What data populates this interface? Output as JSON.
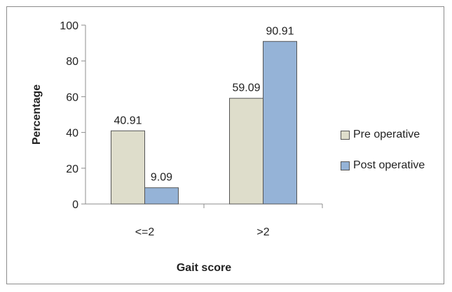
{
  "chart_data": {
    "type": "bar",
    "categories": [
      "<=2",
      ">2"
    ],
    "series": [
      {
        "name": "Pre operative",
        "values": [
          40.91,
          59.09
        ],
        "color": "#deddcb"
      },
      {
        "name": "Post operative",
        "values": [
          9.09,
          90.91
        ],
        "color": "#95b3d7"
      }
    ],
    "data_labels": [
      [
        "40.91",
        "59.09"
      ],
      [
        "9.09",
        "90.91"
      ]
    ],
    "title": "",
    "xlabel": "Gait score",
    "ylabel": "Percentage",
    "ylim": [
      0,
      100
    ],
    "yticks": [
      "0",
      "20",
      "40",
      "60",
      "80",
      "100"
    ],
    "grid": false,
    "legend": "right"
  }
}
